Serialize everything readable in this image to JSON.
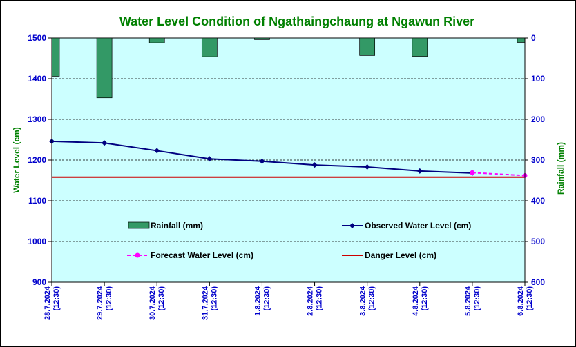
{
  "chart_data": {
    "type": "line",
    "title": "Water Level Condition of  Ngathaingchaung at Ngawun River",
    "ylabel_left": "Water Level (cm)",
    "ylabel_right": "Rainfall (mm)",
    "ylim_left": [
      900,
      1500
    ],
    "yticks_left": [
      900,
      1000,
      1100,
      1200,
      1300,
      1400,
      1500
    ],
    "ylim_right": [
      0,
      600
    ],
    "yticks_right": [
      0,
      100,
      200,
      300,
      400,
      500,
      600
    ],
    "right_axis_inverted": true,
    "grid": "horizontal dashed",
    "categories": [
      {
        "date": "28.7.2024",
        "time": "(12:30)"
      },
      {
        "date": "29.7.2024",
        "time": "(12:30)"
      },
      {
        "date": "30.7.2024",
        "time": "(12:30)"
      },
      {
        "date": "31.7.2024",
        "time": "(12:30)"
      },
      {
        "date": "1.8.2024",
        "time": "(12:30)"
      },
      {
        "date": "2.8.2024",
        "time": "(12:30)"
      },
      {
        "date": "3.8.2024",
        "time": "(12:30)"
      },
      {
        "date": "4.8.2024",
        "time": "(12:30)"
      },
      {
        "date": "5.8.2024",
        "time": "(12:30)"
      },
      {
        "date": "6.8.2024",
        "time": "(12:30)"
      }
    ],
    "rainfall": {
      "name": "Rainfall (mm)",
      "color": "#339966",
      "values": [
        94,
        147,
        12,
        46,
        4,
        0,
        43,
        45,
        0,
        11
      ]
    },
    "observed": {
      "name": "Observed Water Level (cm)",
      "color": "#000080",
      "values": [
        1246,
        1242,
        1223,
        1203,
        1197,
        1188,
        1183,
        1173,
        1168,
        null
      ]
    },
    "forecast": {
      "name": "Forecast Water Level (cm)",
      "color": "#ff00ff",
      "values": [
        null,
        null,
        null,
        null,
        null,
        null,
        null,
        null,
        1169,
        1162
      ]
    },
    "danger": {
      "name": "Danger Level (cm)",
      "color": "#cc0000",
      "value": 1158
    },
    "plot_background": "#ccffff",
    "title_color": "#008000",
    "tick_color": "#0000cc"
  }
}
